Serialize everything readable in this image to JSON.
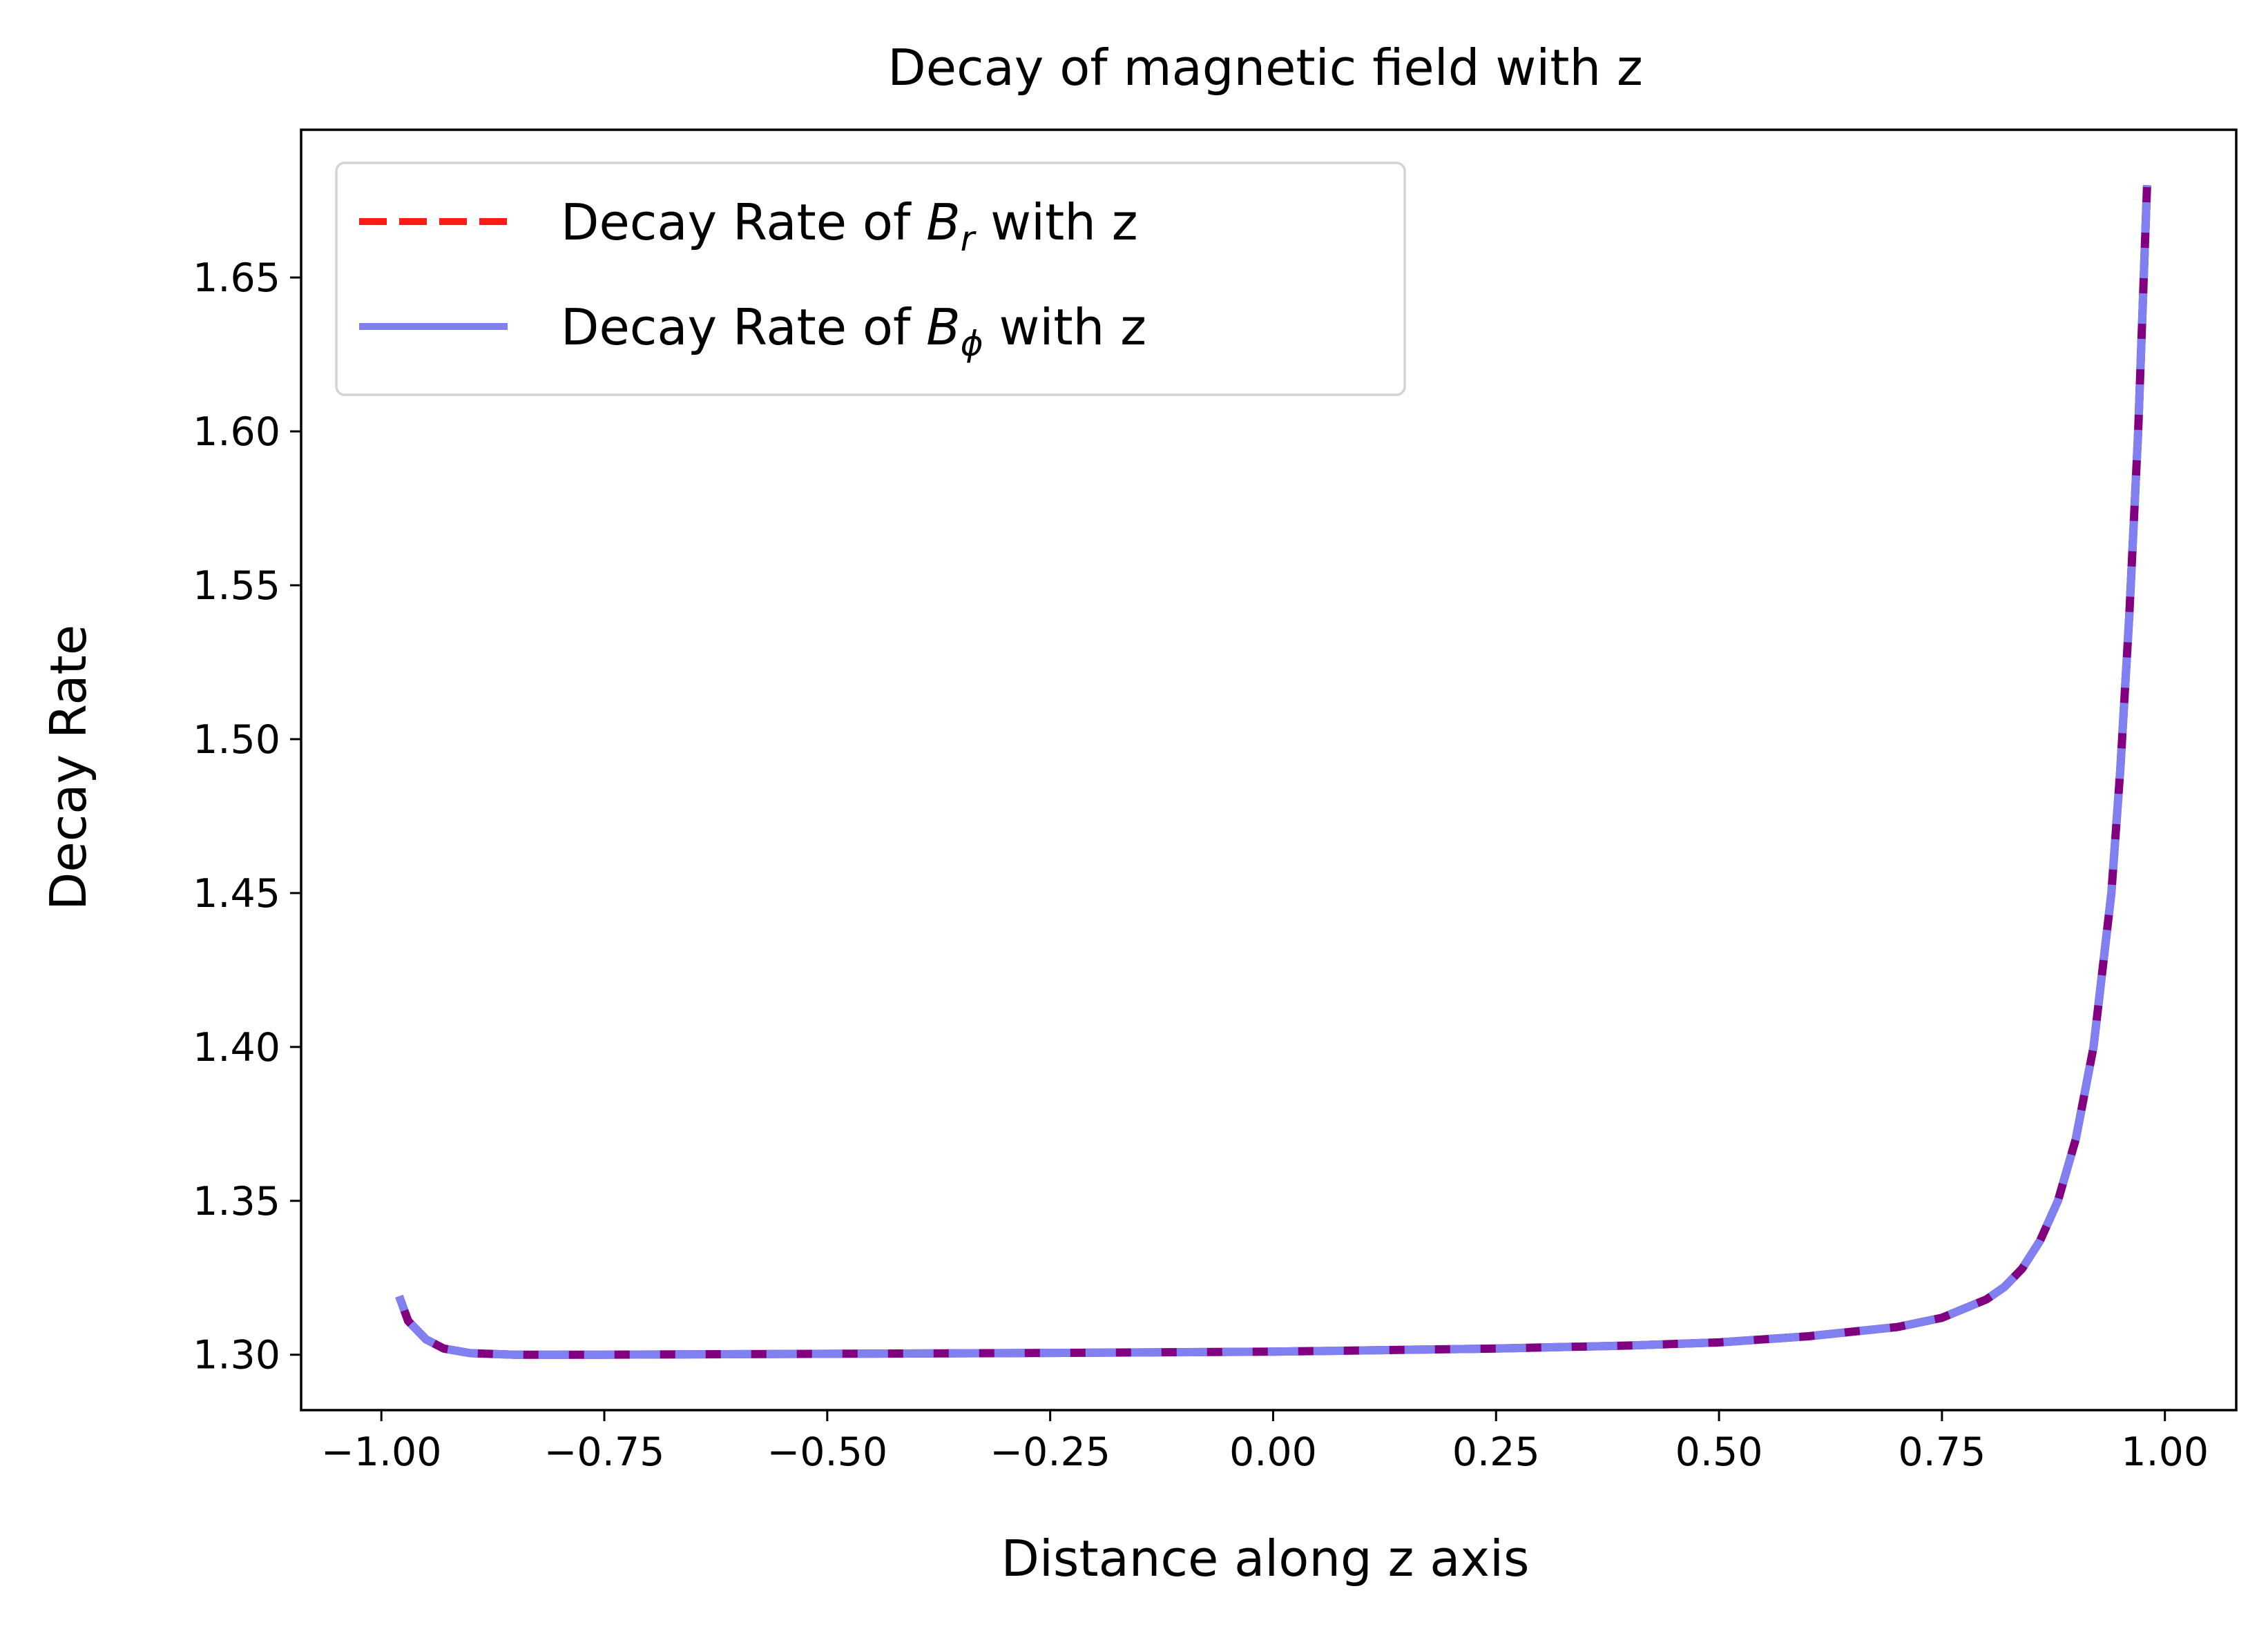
{
  "chart_data": {
    "type": "line",
    "title": "Decay of magnetic field with z",
    "xlabel": "Distance along z axis",
    "ylabel": "Decay Rate",
    "xlim": [
      -1.09,
      1.08
    ],
    "ylim": [
      1.282,
      1.698
    ],
    "x_ticks": [
      -1.0,
      -0.75,
      -0.5,
      -0.25,
      0.0,
      0.25,
      0.5,
      0.75,
      1.0
    ],
    "x_tick_labels": [
      "−1.00",
      "−0.75",
      "−0.50",
      "−0.25",
      "0.00",
      "0.25",
      "0.50",
      "0.75",
      "1.00"
    ],
    "y_ticks": [
      1.3,
      1.35,
      1.4,
      1.45,
      1.5,
      1.55,
      1.6,
      1.65
    ],
    "y_tick_labels": [
      "1.30",
      "1.35",
      "1.40",
      "1.45",
      "1.50",
      "1.55",
      "1.60",
      "1.65"
    ],
    "grid": false,
    "legend_position": "upper-left",
    "x": [
      -0.98,
      -0.97,
      -0.95,
      -0.93,
      -0.9,
      -0.85,
      -0.75,
      -0.5,
      -0.25,
      0.0,
      0.25,
      0.4,
      0.5,
      0.6,
      0.7,
      0.75,
      0.8,
      0.82,
      0.84,
      0.86,
      0.88,
      0.9,
      0.92,
      0.94,
      0.95,
      0.96,
      0.97,
      0.98
    ],
    "series": [
      {
        "name": "Decay Rate of B_r with z",
        "legend_prefix": "Decay Rate of ",
        "legend_symbol": "B",
        "legend_subscript": "r",
        "legend_suffix": " with z",
        "color": "#ff1a1a",
        "style": "dashed",
        "values": [
          1.319,
          1.311,
          1.305,
          1.302,
          1.3005,
          1.3,
          1.3,
          1.3003,
          1.3006,
          1.301,
          1.302,
          1.303,
          1.304,
          1.306,
          1.309,
          1.312,
          1.318,
          1.322,
          1.328,
          1.337,
          1.35,
          1.37,
          1.4,
          1.45,
          1.49,
          1.54,
          1.6,
          1.68
        ]
      },
      {
        "name": "Decay Rate of B_φ with z",
        "legend_prefix": "Decay Rate of ",
        "legend_symbol": "B",
        "legend_subscript": "ϕ",
        "legend_suffix": " with z",
        "color": "#8080f0",
        "style": "solid",
        "values": [
          1.319,
          1.311,
          1.305,
          1.302,
          1.3005,
          1.3,
          1.3,
          1.3003,
          1.3006,
          1.301,
          1.302,
          1.303,
          1.304,
          1.306,
          1.309,
          1.312,
          1.318,
          1.322,
          1.328,
          1.337,
          1.35,
          1.37,
          1.4,
          1.45,
          1.49,
          1.54,
          1.6,
          1.68
        ]
      }
    ]
  }
}
